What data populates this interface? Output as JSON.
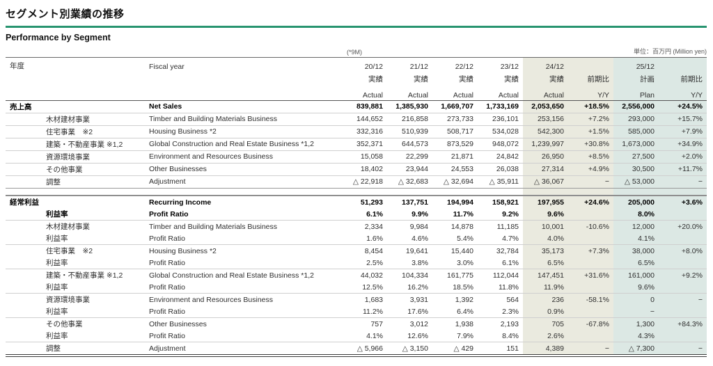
{
  "page": {
    "title_jp": "セグメント別業績の推移",
    "title_en": "Performance by Segment",
    "note_9m": "(*9M)",
    "unit_note": "単位：百万円 (Million yen)"
  },
  "colors": {
    "accent_green": "#27946f",
    "actual_fy24_column_bg": "#eaeadf",
    "plan_fy25_column_bg": "#dce8e4"
  },
  "table": {
    "header": {
      "row_label_jp": "年度",
      "row_label_en": "Fiscal year",
      "years": [
        "20/12",
        "21/12",
        "22/12",
        "23/12",
        "24/12",
        "25/12"
      ],
      "sub_jp": [
        "実績",
        "実績",
        "実績",
        "実績",
        "実績",
        "前期比",
        "計画",
        "前期比"
      ],
      "sub_en": [
        "Actual",
        "Actual",
        "Actual",
        "Actual",
        "Actual",
        "Y/Y",
        "Plan",
        "Y/Y"
      ]
    },
    "sections": [
      {
        "name": "net_sales",
        "rows": [
          {
            "jp": "売上高",
            "jp2": "",
            "en": "Net Sales",
            "bold": true,
            "sep": "light",
            "v": [
              "839,881",
              "1,385,930",
              "1,669,707",
              "1,733,169",
              "2,053,650",
              "+18.5%",
              "2,556,000",
              "+24.5%"
            ]
          },
          {
            "jp": "",
            "jp2": "木材建材事業",
            "en": "Timber and Building Materials Business",
            "bold": false,
            "sep": "light",
            "v": [
              "144,652",
              "216,858",
              "273,733",
              "236,101",
              "253,156",
              "+7.2%",
              "293,000",
              "+15.7%"
            ]
          },
          {
            "jp": "",
            "jp2": "住宅事業　※2",
            "en": "Housing Business *2",
            "bold": false,
            "sep": "light",
            "v": [
              "332,316",
              "510,939",
              "508,717",
              "534,028",
              "542,300",
              "+1.5%",
              "585,000",
              "+7.9%"
            ]
          },
          {
            "jp": "",
            "jp2": "建築・不動産事業 ※1,2",
            "en": "Global Construction and Real Estate Business *1,2",
            "bold": false,
            "sep": "light",
            "v": [
              "352,371",
              "644,573",
              "873,529",
              "948,072",
              "1,239,997",
              "+30.8%",
              "1,673,000",
              "+34.9%"
            ]
          },
          {
            "jp": "",
            "jp2": "資源環境事業",
            "en": "Environment and Resources Business",
            "bold": false,
            "sep": "light",
            "v": [
              "15,058",
              "22,299",
              "21,871",
              "24,842",
              "26,950",
              "+8.5%",
              "27,500",
              "+2.0%"
            ]
          },
          {
            "jp": "",
            "jp2": "その他事業",
            "en": "Other Businesses",
            "bold": false,
            "sep": "light",
            "v": [
              "18,402",
              "23,944",
              "24,553",
              "26,038",
              "27,314",
              "+4.9%",
              "30,500",
              "+11.7%"
            ]
          },
          {
            "jp": "",
            "jp2": "調整",
            "en": "Adjustment",
            "bold": false,
            "sep": "end",
            "v": [
              "△ 22,918",
              "△ 32,683",
              "△ 32,694",
              "△ 35,911",
              "△ 36,067",
              "−",
              "△ 53,000",
              "−"
            ]
          }
        ]
      },
      {
        "name": "recurring_income",
        "rows": [
          {
            "jp": "経常利益",
            "jp2": "",
            "en": "Recurring Income",
            "bold": true,
            "sep": "none",
            "v": [
              "51,293",
              "137,751",
              "194,994",
              "158,921",
              "197,955",
              "+24.6%",
              "205,000",
              "+3.6%"
            ]
          },
          {
            "jp": "",
            "jp2": "利益率",
            "en": "Profit Ratio",
            "bold": true,
            "sep": "light",
            "v": [
              "6.1%",
              "9.9%",
              "11.7%",
              "9.2%",
              "9.6%",
              "",
              "8.0%",
              ""
            ]
          },
          {
            "jp": "",
            "jp2": "木材建材事業",
            "en": "Timber and Building Materials Business",
            "bold": false,
            "sep": "none",
            "v": [
              "2,334",
              "9,984",
              "14,878",
              "11,185",
              "10,001",
              "-10.6%",
              "12,000",
              "+20.0%"
            ]
          },
          {
            "jp": "",
            "jp2": "利益率",
            "en": "Profit Ratio",
            "bold": false,
            "sep": "light",
            "v": [
              "1.6%",
              "4.6%",
              "5.4%",
              "4.7%",
              "4.0%",
              "",
              "4.1%",
              ""
            ]
          },
          {
            "jp": "",
            "jp2": "住宅事業　※2",
            "en": "Housing Business *2",
            "bold": false,
            "sep": "none",
            "v": [
              "8,454",
              "19,641",
              "15,440",
              "32,784",
              "35,173",
              "+7.3%",
              "38,000",
              "+8.0%"
            ]
          },
          {
            "jp": "",
            "jp2": "利益率",
            "en": "Profit Ratio",
            "bold": false,
            "sep": "light",
            "v": [
              "2.5%",
              "3.8%",
              "3.0%",
              "6.1%",
              "6.5%",
              "",
              "6.5%",
              ""
            ]
          },
          {
            "jp": "",
            "jp2": "建築・不動産事業 ※1,2",
            "en": "Global Construction and Real Estate Business *1,2",
            "bold": false,
            "sep": "none",
            "v": [
              "44,032",
              "104,334",
              "161,775",
              "112,044",
              "147,451",
              "+31.6%",
              "161,000",
              "+9.2%"
            ]
          },
          {
            "jp": "",
            "jp2": "利益率",
            "en": "Profit Ratio",
            "bold": false,
            "sep": "light",
            "v": [
              "12.5%",
              "16.2%",
              "18.5%",
              "11.8%",
              "11.9%",
              "",
              "9.6%",
              ""
            ]
          },
          {
            "jp": "",
            "jp2": "資源環境事業",
            "en": "Environment and Resources Business",
            "bold": false,
            "sep": "none",
            "v": [
              "1,683",
              "3,931",
              "1,392",
              "564",
              "236",
              "-58.1%",
              "0",
              "−"
            ]
          },
          {
            "jp": "",
            "jp2": "利益率",
            "en": "Profit Ratio",
            "bold": false,
            "sep": "light",
            "v": [
              "11.2%",
              "17.6%",
              "6.4%",
              "2.3%",
              "0.9%",
              "",
              "−",
              ""
            ]
          },
          {
            "jp": "",
            "jp2": "その他事業",
            "en": "Other Businesses",
            "bold": false,
            "sep": "none",
            "v": [
              "757",
              "3,012",
              "1,938",
              "2,193",
              "705",
              "-67.8%",
              "1,300",
              "+84.3%"
            ]
          },
          {
            "jp": "",
            "jp2": "利益率",
            "en": "Profit Ratio",
            "bold": false,
            "sep": "light",
            "v": [
              "4.1%",
              "12.6%",
              "7.9%",
              "8.4%",
              "2.6%",
              "",
              "4.3%",
              ""
            ]
          },
          {
            "jp": "",
            "jp2": "調整",
            "en": "Adjustment",
            "bold": false,
            "sep": "final",
            "v": [
              "△ 5,966",
              "△ 3,150",
              "△ 429",
              "151",
              "4,389",
              "−",
              "△ 7,300",
              "−"
            ]
          }
        ]
      }
    ]
  }
}
